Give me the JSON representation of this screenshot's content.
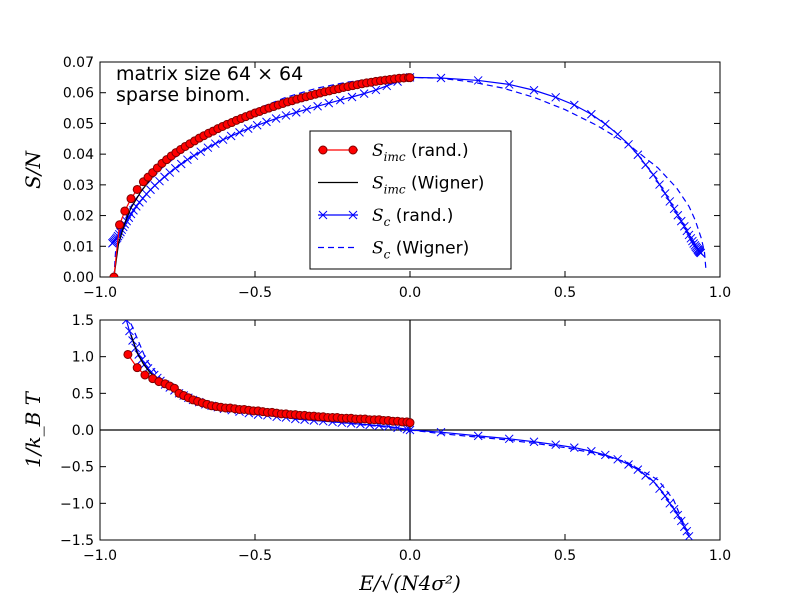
{
  "colors": {
    "red_marker_fill": "#ff0000",
    "red_marker_edge": "#800000",
    "red_line": "#ff0000",
    "blue": "#0000ff",
    "black": "#000000"
  },
  "chart_data": [
    {
      "type": "line",
      "panel": "top",
      "xlabel": "",
      "ylabel": "S/N",
      "xlim": [
        -1.0,
        1.0
      ],
      "ylim": [
        0.0,
        0.07
      ],
      "xticks": [
        "−1.0",
        "−0.5",
        "0.0",
        "0.5",
        "1.0"
      ],
      "yticks": [
        "0.00",
        "0.01",
        "0.02",
        "0.03",
        "0.04",
        "0.05",
        "0.06",
        "0.07"
      ],
      "annotation_lines": [
        "matrix size 64 × 64",
        "sparse binom."
      ],
      "legend_position": "center",
      "legend": [
        {
          "label": "S_imc (rand.)",
          "math": "S",
          "sub": "imc",
          "suffix": " (rand.)",
          "style": "red-dot-line"
        },
        {
          "label": "S_imc (Wigner)",
          "math": "S",
          "sub": "imc",
          "suffix": " (Wigner)",
          "style": "black-line"
        },
        {
          "label": "S_c (rand.)",
          "math": "S",
          "sub": "c",
          "suffix": " (rand.)",
          "style": "blue-x-line"
        },
        {
          "label": "S_c (Wigner)",
          "math": "S",
          "sub": "c",
          "suffix": " (Wigner)",
          "style": "blue-dash"
        }
      ],
      "series": [
        {
          "style": "red-dot-line",
          "x": [
            -0.955,
            -0.937,
            -0.92,
            -0.9,
            -0.88,
            -0.86,
            -0.845,
            -0.83,
            -0.815,
            -0.8,
            -0.785,
            -0.77,
            -0.755,
            -0.74,
            -0.725,
            -0.71,
            -0.695,
            -0.68,
            -0.665,
            -0.65,
            -0.635,
            -0.62,
            -0.605,
            -0.59,
            -0.575,
            -0.56,
            -0.545,
            -0.53,
            -0.515,
            -0.5,
            -0.485,
            -0.47,
            -0.455,
            -0.44,
            -0.425,
            -0.41,
            -0.395,
            -0.38,
            -0.365,
            -0.35,
            -0.335,
            -0.32,
            -0.305,
            -0.29,
            -0.275,
            -0.26,
            -0.245,
            -0.23,
            -0.215,
            -0.2,
            -0.185,
            -0.17,
            -0.155,
            -0.14,
            -0.125,
            -0.11,
            -0.095,
            -0.08,
            -0.065,
            -0.05,
            -0.035,
            -0.02,
            -0.005,
            0.0
          ],
          "y": [
            0.0,
            0.017,
            0.0215,
            0.0255,
            0.0285,
            0.031,
            0.0325,
            0.034,
            0.0355,
            0.037,
            0.0382,
            0.0394,
            0.0405,
            0.0415,
            0.0425,
            0.0434,
            0.0443,
            0.0452,
            0.046,
            0.0468,
            0.0475,
            0.0483,
            0.049,
            0.0497,
            0.0503,
            0.051,
            0.0516,
            0.0522,
            0.0528,
            0.0534,
            0.0539,
            0.0545,
            0.055,
            0.0555,
            0.056,
            0.0565,
            0.057,
            0.0574,
            0.0579,
            0.0583,
            0.0587,
            0.0591,
            0.0595,
            0.0599,
            0.0603,
            0.0606,
            0.061,
            0.0613,
            0.0617,
            0.062,
            0.0623,
            0.0626,
            0.0629,
            0.0632,
            0.0634,
            0.0637,
            0.0639,
            0.0641,
            0.0643,
            0.0645,
            0.0647,
            0.0648,
            0.0649,
            0.0649
          ]
        },
        {
          "style": "black-line",
          "x": [
            -0.955,
            -0.94,
            -0.92,
            -0.9,
            -0.87,
            -0.84,
            -0.8,
            -0.76,
            -0.7,
            -0.64,
            -0.58,
            -0.5,
            -0.42,
            -0.34,
            -0.26,
            -0.18,
            -0.1,
            -0.05,
            0.0
          ],
          "y": [
            0.0,
            0.011,
            0.0175,
            0.0225,
            0.0275,
            0.0315,
            0.036,
            0.0395,
            0.0435,
            0.047,
            0.0502,
            0.0535,
            0.0565,
            0.0588,
            0.0609,
            0.0627,
            0.064,
            0.0646,
            0.065
          ]
        },
        {
          "style": "blue-x-line",
          "x": [
            -0.96,
            -0.957,
            -0.954,
            -0.951,
            -0.948,
            -0.945,
            -0.942,
            -0.938,
            -0.934,
            -0.93,
            -0.925,
            -0.92,
            -0.914,
            -0.907,
            -0.9,
            -0.892,
            -0.883,
            -0.873,
            -0.862,
            -0.85,
            -0.837,
            -0.823,
            -0.808,
            -0.792,
            -0.775,
            -0.757,
            -0.738,
            -0.718,
            -0.697,
            -0.675,
            -0.652,
            -0.628,
            -0.603,
            -0.577,
            -0.55,
            -0.522,
            -0.493,
            -0.463,
            -0.432,
            -0.4,
            -0.367,
            -0.333,
            -0.298,
            -0.262,
            -0.225,
            -0.187,
            -0.148,
            -0.11,
            -0.075,
            -0.04,
            -0.01,
            0.0,
            0.1,
            0.22,
            0.32,
            0.4,
            0.47,
            0.53,
            0.585,
            0.63,
            0.67,
            0.705,
            0.735,
            0.76,
            0.785,
            0.805,
            0.823,
            0.838,
            0.852,
            0.864,
            0.875,
            0.885,
            0.893,
            0.9,
            0.906,
            0.911,
            0.915,
            0.919,
            0.922,
            0.925,
            0.928,
            0.93,
            0.932,
            0.934,
            0.936,
            0.938
          ],
          "y": [
            0.011,
            0.0113,
            0.0116,
            0.012,
            0.0124,
            0.0128,
            0.0133,
            0.0139,
            0.0146,
            0.0154,
            0.0163,
            0.0172,
            0.0182,
            0.0193,
            0.0205,
            0.0217,
            0.023,
            0.0243,
            0.0256,
            0.027,
            0.0284,
            0.0298,
            0.0312,
            0.0326,
            0.034,
            0.0354,
            0.0368,
            0.0382,
            0.0395,
            0.0408,
            0.0421,
            0.0434,
            0.0447,
            0.0459,
            0.0471,
            0.0483,
            0.0494,
            0.0505,
            0.0516,
            0.0526,
            0.0536,
            0.0546,
            0.0556,
            0.0566,
            0.0576,
            0.0586,
            0.0597,
            0.0609,
            0.0622,
            0.0636,
            0.0648,
            0.065,
            0.0648,
            0.064,
            0.0627,
            0.0608,
            0.0585,
            0.056,
            0.053,
            0.0498,
            0.0465,
            0.0432,
            0.0398,
            0.0365,
            0.0333,
            0.0301,
            0.0272,
            0.0246,
            0.0222,
            0.0201,
            0.0182,
            0.0165,
            0.015,
            0.0137,
            0.0126,
            0.0117,
            0.0109,
            0.0103,
            0.0098,
            0.0094,
            0.009,
            0.0087,
            0.0084,
            0.0082,
            0.008,
            0.0078
          ]
        },
        {
          "style": "blue-dash",
          "x": [
            -0.955,
            -0.95,
            -0.94,
            -0.92,
            -0.9,
            -0.86,
            -0.8,
            -0.7,
            -0.6,
            -0.5,
            -0.4,
            -0.3,
            -0.2,
            -0.1,
            0.0,
            0.1,
            0.2,
            0.3,
            0.4,
            0.5,
            0.6,
            0.7,
            0.8,
            0.86,
            0.9,
            0.92,
            0.94,
            0.95,
            0.955
          ],
          "y": [
            0.0,
            0.008,
            0.0125,
            0.0185,
            0.023,
            0.029,
            0.0355,
            0.0435,
            0.0495,
            0.0545,
            0.0585,
            0.0615,
            0.0635,
            0.0647,
            0.065,
            0.0647,
            0.0635,
            0.0615,
            0.0585,
            0.0545,
            0.0495,
            0.0435,
            0.0355,
            0.029,
            0.023,
            0.0185,
            0.0125,
            0.008,
            0.002
          ]
        }
      ]
    },
    {
      "type": "line",
      "panel": "bottom",
      "xlabel": "E/√(N4σ²)",
      "ylabel": "1/k_B T",
      "xlim": [
        -1.0,
        1.0
      ],
      "ylim": [
        -1.5,
        1.5
      ],
      "xticks": [
        "−1.0",
        "−0.5",
        "0.0",
        "0.5",
        "1.0"
      ],
      "yticks": [
        "−1.5",
        "−1.0",
        "−0.5",
        "0.0",
        "0.5",
        "1.0",
        "1.5"
      ],
      "reference_lines": {
        "x": 0.0,
        "y": 0.0
      },
      "series": [
        {
          "style": "red-dot-line",
          "x": [
            -0.91,
            -0.88,
            -0.855,
            -0.83,
            -0.81,
            -0.79,
            -0.775,
            -0.76,
            -0.745,
            -0.73,
            -0.715,
            -0.7,
            -0.685,
            -0.67,
            -0.655,
            -0.64,
            -0.625,
            -0.61,
            -0.595,
            -0.58,
            -0.565,
            -0.55,
            -0.535,
            -0.52,
            -0.505,
            -0.49,
            -0.475,
            -0.46,
            -0.445,
            -0.43,
            -0.415,
            -0.4,
            -0.385,
            -0.37,
            -0.355,
            -0.34,
            -0.325,
            -0.31,
            -0.295,
            -0.28,
            -0.265,
            -0.25,
            -0.235,
            -0.22,
            -0.205,
            -0.19,
            -0.175,
            -0.16,
            -0.145,
            -0.13,
            -0.115,
            -0.1,
            -0.085,
            -0.07,
            -0.055,
            -0.04,
            -0.025,
            -0.01,
            0.0
          ],
          "y": [
            1.03,
            0.85,
            0.75,
            0.7,
            0.66,
            0.63,
            0.6,
            0.57,
            0.5,
            0.47,
            0.44,
            0.41,
            0.39,
            0.37,
            0.35,
            0.33,
            0.32,
            0.31,
            0.3,
            0.3,
            0.29,
            0.28,
            0.28,
            0.27,
            0.26,
            0.26,
            0.25,
            0.24,
            0.24,
            0.23,
            0.22,
            0.22,
            0.21,
            0.21,
            0.2,
            0.2,
            0.19,
            0.19,
            0.18,
            0.18,
            0.17,
            0.17,
            0.17,
            0.16,
            0.16,
            0.16,
            0.15,
            0.15,
            0.15,
            0.14,
            0.14,
            0.14,
            0.13,
            0.13,
            0.12,
            0.12,
            0.11,
            0.11,
            0.1
          ]
        },
        {
          "style": "black-line",
          "x": [
            -0.9,
            -0.88,
            -0.86,
            -0.84,
            -0.82,
            -0.8,
            -0.77,
            -0.74,
            -0.7,
            -0.65,
            -0.6,
            -0.5,
            -0.4,
            -0.3,
            -0.2,
            -0.1,
            -0.05,
            0.0
          ],
          "y": [
            1.3,
            1.05,
            0.9,
            0.79,
            0.71,
            0.64,
            0.56,
            0.5,
            0.44,
            0.38,
            0.33,
            0.26,
            0.21,
            0.17,
            0.13,
            0.1,
            0.08,
            0.06
          ]
        },
        {
          "style": "blue-x-line",
          "x": [
            -0.915,
            -0.905,
            -0.895,
            -0.885,
            -0.875,
            -0.865,
            -0.855,
            -0.845,
            -0.835,
            -0.825,
            -0.815,
            -0.805,
            -0.79,
            -0.775,
            -0.76,
            -0.745,
            -0.73,
            -0.715,
            -0.7,
            -0.68,
            -0.66,
            -0.64,
            -0.62,
            -0.6,
            -0.575,
            -0.55,
            -0.52,
            -0.49,
            -0.46,
            -0.43,
            -0.4,
            -0.37,
            -0.34,
            -0.31,
            -0.28,
            -0.25,
            -0.22,
            -0.19,
            -0.16,
            -0.13,
            -0.1,
            -0.07,
            -0.04,
            -0.01,
            0.0,
            0.1,
            0.22,
            0.32,
            0.4,
            0.47,
            0.53,
            0.585,
            0.63,
            0.67,
            0.705,
            0.735,
            0.76,
            0.785,
            0.805,
            0.823,
            0.838,
            0.852,
            0.864,
            0.875,
            0.885,
            0.893,
            0.9
          ],
          "y": [
            1.5,
            1.35,
            1.22,
            1.12,
            1.03,
            0.96,
            0.9,
            0.84,
            0.79,
            0.75,
            0.71,
            0.67,
            0.62,
            0.58,
            0.54,
            0.5,
            0.47,
            0.44,
            0.41,
            0.38,
            0.35,
            0.33,
            0.31,
            0.29,
            0.27,
            0.25,
            0.23,
            0.21,
            0.2,
            0.18,
            0.17,
            0.15,
            0.14,
            0.13,
            0.12,
            0.11,
            0.1,
            0.09,
            0.08,
            0.07,
            0.06,
            0.05,
            0.03,
            0.01,
            0.0,
            -0.03,
            -0.08,
            -0.12,
            -0.16,
            -0.2,
            -0.24,
            -0.29,
            -0.34,
            -0.4,
            -0.47,
            -0.54,
            -0.62,
            -0.7,
            -0.8,
            -0.9,
            -1.0,
            -1.08,
            -1.16,
            -1.24,
            -1.32,
            -1.38,
            -1.45
          ]
        },
        {
          "style": "blue-dash",
          "x": [
            -0.9,
            -0.85,
            -0.8,
            -0.7,
            -0.6,
            -0.5,
            -0.4,
            -0.3,
            -0.2,
            -0.1,
            0.0,
            0.1,
            0.2,
            0.3,
            0.4,
            0.5,
            0.6,
            0.7,
            0.8,
            0.85,
            0.9
          ],
          "y": [
            1.45,
            0.95,
            0.68,
            0.44,
            0.32,
            0.24,
            0.18,
            0.13,
            0.09,
            0.05,
            0.0,
            -0.05,
            -0.09,
            -0.13,
            -0.18,
            -0.24,
            -0.32,
            -0.44,
            -0.68,
            -0.95,
            -1.45
          ]
        }
      ]
    }
  ]
}
